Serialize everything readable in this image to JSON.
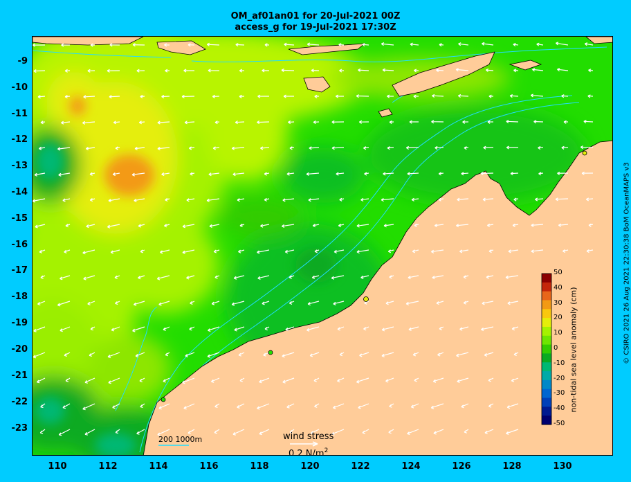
{
  "title_line1": "OM_af01an01 for 20-Jul-2021 00Z",
  "title_line2": "access_g for 19-Jul-2021 17:30Z",
  "credit": "© CSIRO 2021  26 Aug 2021 22:30:38 BoM OceanMAPS v3",
  "map": {
    "lon_range": [
      109,
      132
    ],
    "lat_range": [
      -24,
      -8
    ],
    "lon_ticks": [
      "110",
      "112",
      "114",
      "116",
      "118",
      "120",
      "122",
      "124",
      "126",
      "128",
      "130"
    ],
    "lat_ticks": [
      "-9",
      "-10",
      "-11",
      "-12",
      "-13",
      "-14",
      "-15",
      "-16",
      "-17",
      "-18",
      "-19",
      "-20",
      "-21",
      "-22",
      "-23"
    ],
    "depth_legend_label": "200  1000m",
    "wind_stress_label": "wind stress",
    "wind_stress_scale": "0.2 N/m",
    "wind_stress_exponent": "2",
    "ocean_base_color": "#22dd00",
    "land_color": "#ffcc99",
    "contour_color": "#22ddff",
    "arrow_color": "#ffffff"
  },
  "colorbar": {
    "title": "non-tidal sea level anomaly (cm)",
    "ticks": [
      "50",
      "40",
      "30",
      "20",
      "10",
      "0",
      "-10",
      "-20",
      "-30",
      "-40",
      "-50"
    ],
    "colors": [
      "#8b0000",
      "#c4260a",
      "#e8661a",
      "#f39a14",
      "#f9c80e",
      "#e5ee0a",
      "#a5f200",
      "#6ee600",
      "#33cc00",
      "#0aaa22",
      "#00b873",
      "#00aaa8",
      "#0088c8",
      "#0066d0",
      "#0040b8",
      "#001a90",
      "#00006e"
    ]
  }
}
